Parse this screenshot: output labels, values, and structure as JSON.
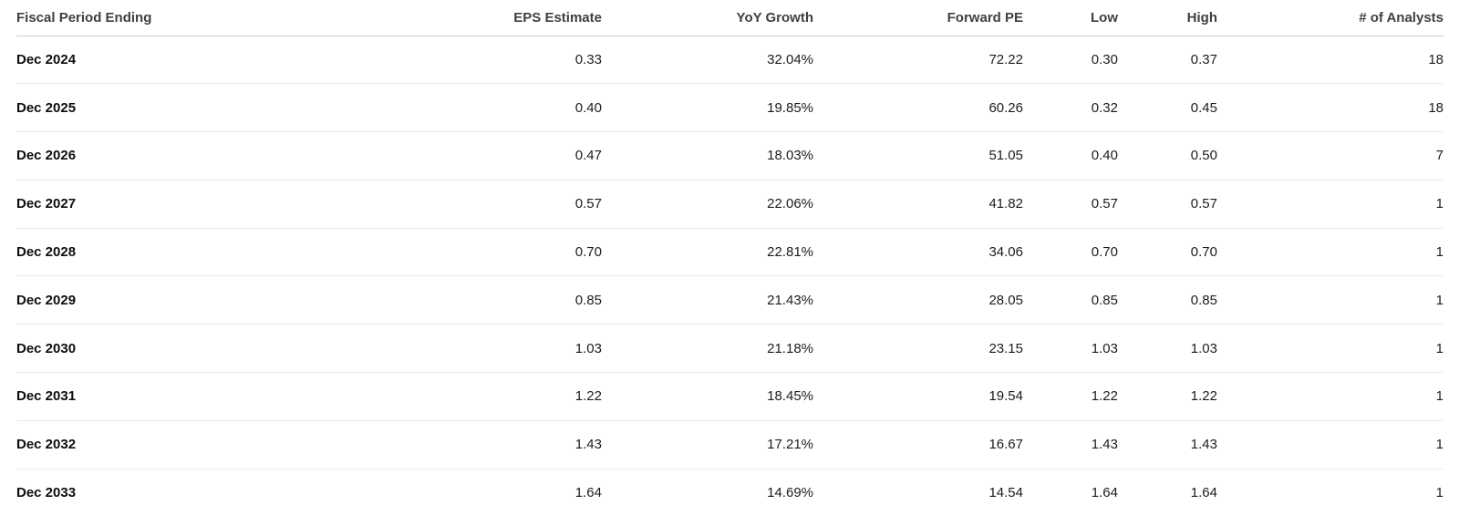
{
  "table": {
    "columns": [
      {
        "key": "fiscal-period-ending",
        "label": "Fiscal Period Ending",
        "align": "left"
      },
      {
        "key": "eps-estimate",
        "label": "EPS Estimate",
        "align": "right"
      },
      {
        "key": "yoy-growth",
        "label": "YoY Growth",
        "align": "right"
      },
      {
        "key": "forward-pe",
        "label": "Forward PE",
        "align": "right"
      },
      {
        "key": "low",
        "label": "Low",
        "align": "right"
      },
      {
        "key": "high",
        "label": "High",
        "align": "right"
      },
      {
        "key": "num-analysts",
        "label": "# of Analysts",
        "align": "right"
      }
    ],
    "rows": [
      {
        "fiscal_period": "Dec 2024",
        "eps_estimate": "0.33",
        "yoy_growth": "32.04%",
        "forward_pe": "72.22",
        "low": "0.30",
        "high": "0.37",
        "analysts": "18"
      },
      {
        "fiscal_period": "Dec 2025",
        "eps_estimate": "0.40",
        "yoy_growth": "19.85%",
        "forward_pe": "60.26",
        "low": "0.32",
        "high": "0.45",
        "analysts": "18"
      },
      {
        "fiscal_period": "Dec 2026",
        "eps_estimate": "0.47",
        "yoy_growth": "18.03%",
        "forward_pe": "51.05",
        "low": "0.40",
        "high": "0.50",
        "analysts": "7"
      },
      {
        "fiscal_period": "Dec 2027",
        "eps_estimate": "0.57",
        "yoy_growth": "22.06%",
        "forward_pe": "41.82",
        "low": "0.57",
        "high": "0.57",
        "analysts": "1"
      },
      {
        "fiscal_period": "Dec 2028",
        "eps_estimate": "0.70",
        "yoy_growth": "22.81%",
        "forward_pe": "34.06",
        "low": "0.70",
        "high": "0.70",
        "analysts": "1"
      },
      {
        "fiscal_period": "Dec 2029",
        "eps_estimate": "0.85",
        "yoy_growth": "21.43%",
        "forward_pe": "28.05",
        "low": "0.85",
        "high": "0.85",
        "analysts": "1"
      },
      {
        "fiscal_period": "Dec 2030",
        "eps_estimate": "1.03",
        "yoy_growth": "21.18%",
        "forward_pe": "23.15",
        "low": "1.03",
        "high": "1.03",
        "analysts": "1"
      },
      {
        "fiscal_period": "Dec 2031",
        "eps_estimate": "1.22",
        "yoy_growth": "18.45%",
        "forward_pe": "19.54",
        "low": "1.22",
        "high": "1.22",
        "analysts": "1"
      },
      {
        "fiscal_period": "Dec 2032",
        "eps_estimate": "1.43",
        "yoy_growth": "17.21%",
        "forward_pe": "16.67",
        "low": "1.43",
        "high": "1.43",
        "analysts": "1"
      },
      {
        "fiscal_period": "Dec 2033",
        "eps_estimate": "1.64",
        "yoy_growth": "14.69%",
        "forward_pe": "14.54",
        "low": "1.64",
        "high": "1.64",
        "analysts": "1"
      }
    ]
  }
}
